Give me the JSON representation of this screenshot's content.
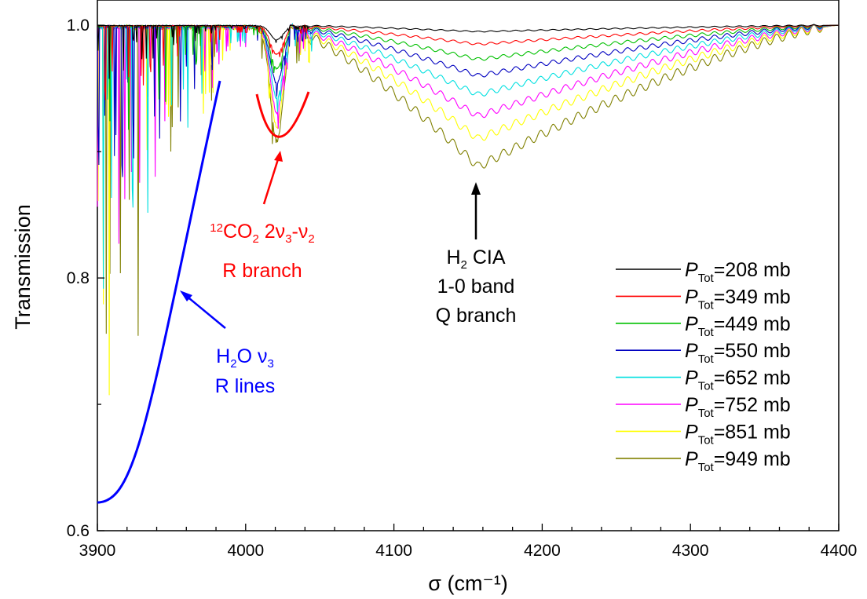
{
  "chart_data": {
    "type": "line",
    "xlabel": "σ (cm⁻¹)",
    "ylabel": "Transmission",
    "xlim": [
      3900,
      4400
    ],
    "ylim": [
      0.6,
      1.02
    ],
    "xticks": [
      "3900",
      "4000",
      "4100",
      "4200",
      "4300",
      "4400"
    ],
    "xtick_values": [
      3900,
      4000,
      4100,
      4200,
      4300,
      4400
    ],
    "yticks": [
      "0.6",
      "0.8",
      "1.0"
    ],
    "ytick_values": [
      0.6,
      0.8,
      1.0
    ],
    "grid": false,
    "legend_position": "bottom-right",
    "legend_labels": [
      "=208 mb",
      "=349 mb",
      "=449 mb",
      "=550 mb",
      "=652 mb",
      "=752 mb",
      "=851 mb",
      "=949 mb"
    ],
    "legend_prefix": "P",
    "legend_subscript": "Tot",
    "series": [
      {
        "name": "P_Tot=208 mb",
        "pressure_mb": 208,
        "color": "#000000",
        "min_transmission_at_4157": 0.995
      },
      {
        "name": "P_Tot=349 mb",
        "pressure_mb": 349,
        "color": "#ff0000",
        "min_transmission_at_4157": 0.985
      },
      {
        "name": "P_Tot=449 mb",
        "pressure_mb": 449,
        "color": "#00c000",
        "min_transmission_at_4157": 0.973
      },
      {
        "name": "P_Tot=550 mb",
        "pressure_mb": 550,
        "color": "#0000c0",
        "min_transmission_at_4157": 0.96
      },
      {
        "name": "P_Tot=652 mb",
        "pressure_mb": 652,
        "color": "#00e0e0",
        "min_transmission_at_4157": 0.945
      },
      {
        "name": "P_Tot=752 mb",
        "pressure_mb": 752,
        "color": "#ff00ff",
        "min_transmission_at_4157": 0.928
      },
      {
        "name": "P_Tot=851 mb",
        "pressure_mb": 851,
        "color": "#ffff00",
        "min_transmission_at_4157": 0.91
      },
      {
        "name": "P_Tot=949 mb",
        "pressure_mb": 949,
        "color": "#808000",
        "min_transmission_at_4157": 0.888
      }
    ],
    "annotations": [
      {
        "lines": [
          "H2 CIA",
          "1-0 band",
          "Q branch"
        ],
        "color": "#000000",
        "points_to_x": 4157
      },
      {
        "lines": [
          "12CO2 2ν3-ν2",
          "R branch"
        ],
        "color": "#ff0000",
        "points_to_x": 4022
      },
      {
        "lines": [
          "H2O ν3",
          "R lines"
        ],
        "color": "#0000ff",
        "points_to_x": 3950
      }
    ]
  }
}
